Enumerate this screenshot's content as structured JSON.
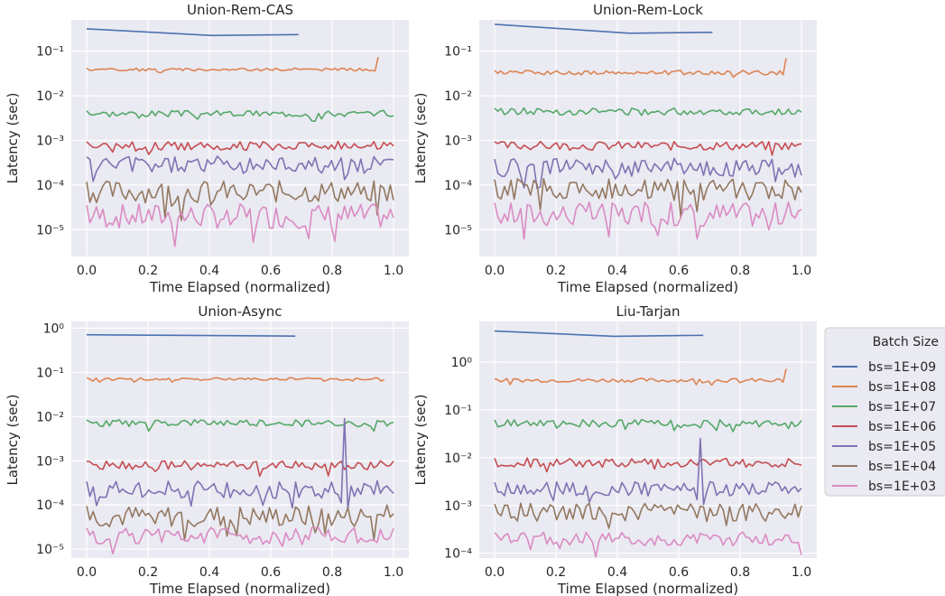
{
  "legend": {
    "title": "Batch Size",
    "entries": [
      "bs=1E+09",
      "bs=1E+08",
      "bs=1E+07",
      "bs=1E+06",
      "bs=1E+05",
      "bs=1E+04",
      "bs=1E+03"
    ]
  },
  "colors": [
    "#4c72b0",
    "#dd8452",
    "#55a868",
    "#c44e52",
    "#8172b3",
    "#937860",
    "#da8bc3"
  ],
  "chart_data": [
    {
      "type": "line",
      "title": "Union-Rem-CAS",
      "xlabel": "Time Elapsed (normalized)",
      "ylabel": "Latency (sec)",
      "x_ticks": [
        "0.0",
        "0.2",
        "0.4",
        "0.6",
        "0.8",
        "1.0"
      ],
      "y_scale": "log",
      "ylim_log10": [
        -5.6,
        -0.3
      ],
      "y_ticks": [
        -5,
        -4,
        -3,
        -2,
        -1
      ],
      "grid": true,
      "series": [
        {
          "name": "bs=1E+09",
          "x": [
            0.0,
            0.41,
            0.69
          ],
          "y_log10": [
            -0.5,
            -0.65,
            -0.63
          ]
        },
        {
          "name": "bs=1E+08",
          "x_end": 0.95,
          "base": -1.41,
          "amp": 0.03,
          "end_bump": 0.7,
          "seed": 2
        },
        {
          "name": "bs=1E+07",
          "x_end": 1.0,
          "base": -2.4,
          "amp": 0.07,
          "seed": 3
        },
        {
          "name": "bs=1E+06",
          "x_end": 1.0,
          "base": -3.12,
          "amp": 0.1,
          "seed": 4
        },
        {
          "name": "bs=1E+05",
          "x_end": 1.0,
          "base": -3.55,
          "amp": 0.2,
          "seed": 5
        },
        {
          "name": "bs=1E+04",
          "x_end": 1.0,
          "base": -4.15,
          "amp": 0.25,
          "seed": 6
        },
        {
          "name": "bs=1E+03",
          "x_end": 1.0,
          "base": -4.7,
          "amp": 0.28,
          "seed": 7
        }
      ]
    },
    {
      "type": "line",
      "title": "Union-Rem-Lock",
      "xlabel": "Time Elapsed (normalized)",
      "ylabel": "Latency (sec)",
      "x_ticks": [
        "0.0",
        "0.2",
        "0.4",
        "0.6",
        "0.8",
        "1.0"
      ],
      "y_scale": "log",
      "ylim_log10": [
        -5.6,
        -0.3
      ],
      "y_ticks": [
        -5,
        -4,
        -3,
        -2,
        -1
      ],
      "grid": true,
      "series": [
        {
          "name": "bs=1E+09",
          "x": [
            0.0,
            0.44,
            0.71
          ],
          "y_log10": [
            -0.4,
            -0.6,
            -0.58
          ]
        },
        {
          "name": "bs=1E+08",
          "x_end": 0.95,
          "base": -1.48,
          "amp": 0.05,
          "end_bump": 0.8,
          "seed": 12
        },
        {
          "name": "bs=1E+07",
          "x_end": 1.0,
          "base": -2.35,
          "amp": 0.08,
          "seed": 13
        },
        {
          "name": "bs=1E+06",
          "x_end": 1.0,
          "base": -3.12,
          "amp": 0.1,
          "seed": 14
        },
        {
          "name": "bs=1E+05",
          "x_end": 1.0,
          "base": -3.6,
          "amp": 0.2,
          "seed": 15
        },
        {
          "name": "bs=1E+04",
          "x_end": 1.0,
          "base": -4.1,
          "amp": 0.25,
          "seed": 16
        },
        {
          "name": "bs=1E+03",
          "x_end": 1.0,
          "base": -4.65,
          "amp": 0.28,
          "seed": 17
        }
      ]
    },
    {
      "type": "line",
      "title": "Union-Async",
      "xlabel": "Time Elapsed (normalized)",
      "ylabel": "Latency (sec)",
      "x_ticks": [
        "0.0",
        "0.2",
        "0.4",
        "0.6",
        "0.8",
        "1.0"
      ],
      "y_scale": "log",
      "ylim_log10": [
        -5.2,
        0.15
      ],
      "y_ticks": [
        -5,
        -4,
        -3,
        -2,
        -1,
        0
      ],
      "grid": true,
      "series": [
        {
          "name": "bs=1E+09",
          "x": [
            0.0,
            0.68
          ],
          "y_log10": [
            -0.15,
            -0.18
          ]
        },
        {
          "name": "bs=1E+08",
          "x_end": 0.97,
          "base": -1.15,
          "amp": 0.03,
          "seed": 22
        },
        {
          "name": "bs=1E+07",
          "x_end": 1.0,
          "base": -2.15,
          "amp": 0.08,
          "seed": 23
        },
        {
          "name": "bs=1E+06",
          "x_end": 1.0,
          "base": -3.1,
          "amp": 0.1,
          "seed": 24
        },
        {
          "name": "bs=1E+05",
          "x_end": 1.0,
          "base": -3.65,
          "amp": 0.2,
          "spike": [
            0.84,
            -2.05
          ],
          "seed": 25
        },
        {
          "name": "bs=1E+04",
          "x_end": 1.0,
          "base": -4.25,
          "amp": 0.25,
          "seed": 26
        },
        {
          "name": "bs=1E+03",
          "x_end": 1.0,
          "base": -4.7,
          "amp": 0.2,
          "seed": 27
        }
      ]
    },
    {
      "type": "line",
      "title": "Liu-Tarjan",
      "xlabel": "Time Elapsed (normalized)",
      "ylabel": "Latency (sec)",
      "x_ticks": [
        "0.0",
        "0.2",
        "0.4",
        "0.6",
        "0.8",
        "1.0"
      ],
      "y_scale": "log",
      "ylim_log10": [
        -4.1,
        0.85
      ],
      "y_ticks": [
        -4,
        -3,
        -2,
        -1,
        0
      ],
      "grid": true,
      "series": [
        {
          "name": "bs=1E+09",
          "x": [
            0.0,
            0.39,
            0.68
          ],
          "y_log10": [
            0.65,
            0.54,
            0.56
          ]
        },
        {
          "name": "bs=1E+08",
          "x_end": 0.95,
          "base": -0.38,
          "amp": 0.04,
          "end_bump": 0.6,
          "seed": 32
        },
        {
          "name": "bs=1E+07",
          "x_end": 1.0,
          "base": -1.28,
          "amp": 0.08,
          "seed": 33
        },
        {
          "name": "bs=1E+06",
          "x_end": 1.0,
          "base": -2.1,
          "amp": 0.1,
          "seed": 34
        },
        {
          "name": "bs=1E+05",
          "x_end": 1.0,
          "base": -2.65,
          "amp": 0.15,
          "spike": [
            0.67,
            -1.6
          ],
          "seed": 35
        },
        {
          "name": "bs=1E+04",
          "x_end": 1.0,
          "base": -3.15,
          "amp": 0.2,
          "seed": 36
        },
        {
          "name": "bs=1E+03",
          "x_end": 1.0,
          "base": -3.7,
          "amp": 0.15,
          "seed": 37
        }
      ]
    }
  ]
}
